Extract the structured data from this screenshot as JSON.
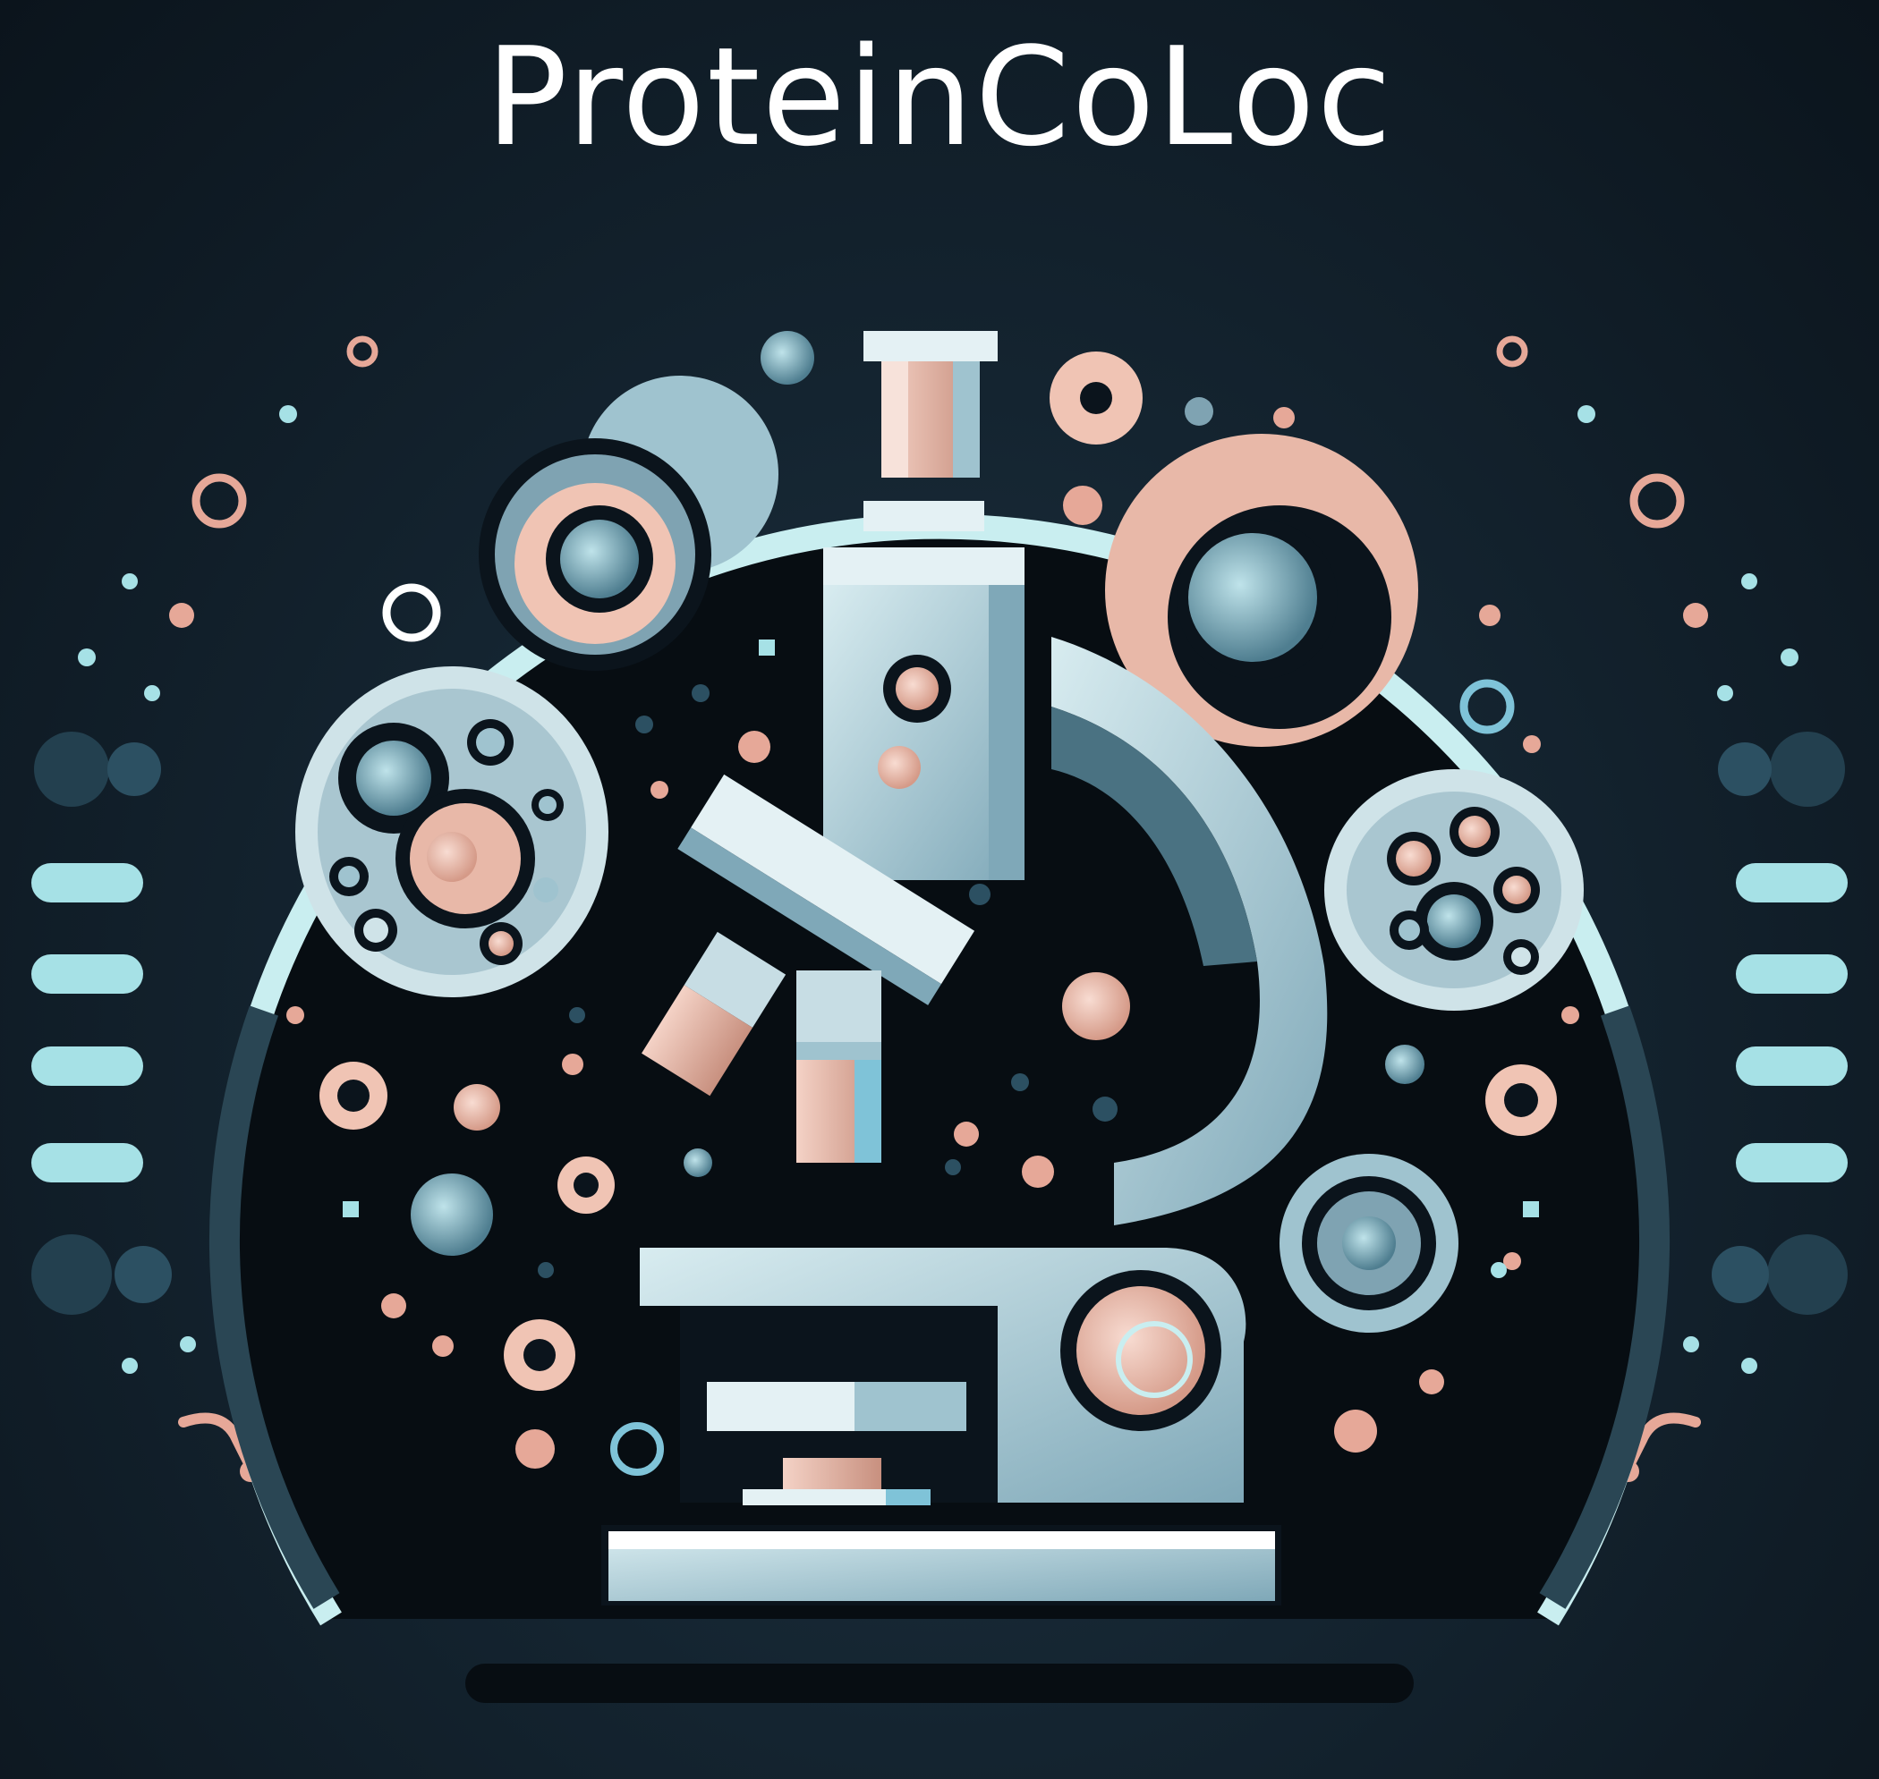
{
  "logo": {
    "title": "ProteinCoLoc",
    "icons": [
      "microscope-icon",
      "cell-icon",
      "particle-icon"
    ]
  },
  "colors": {
    "background": "#0b141c",
    "panel": "#070d12",
    "ring": "#c9eef0",
    "teal": "#7fb9c8",
    "steel": "#9fc3cf",
    "pink": "#f0c4b4",
    "text": "#ffffff"
  }
}
